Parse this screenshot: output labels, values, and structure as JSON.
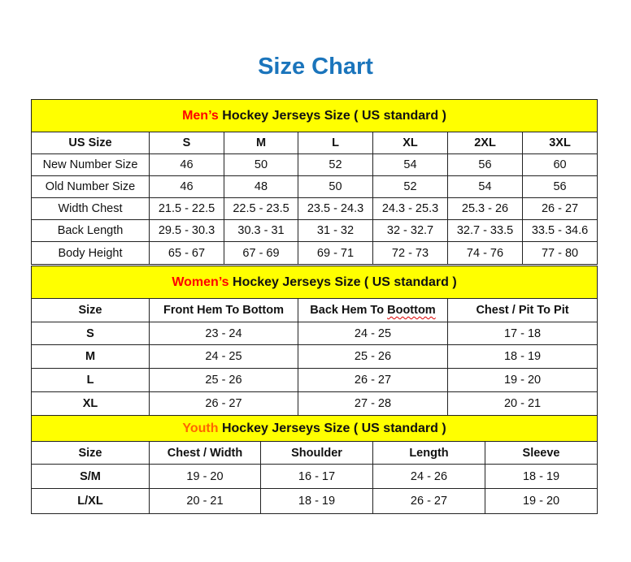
{
  "title": "Size Chart",
  "colors": {
    "title": "#1b75bc",
    "header_bg": "#ffff00",
    "mens_accent": "#ff0000",
    "womens_accent": "#ff0000",
    "youth_accent": "#ff6600"
  },
  "sections": [
    {
      "key": "mens",
      "accent": "Men’s",
      "accent_color": "#ff0000",
      "rest": " Hockey Jerseys Size ( US standard )",
      "headers": [
        "US Size",
        "S",
        "M",
        "L",
        "XL",
        "2XL",
        "3XL"
      ],
      "rows": [
        [
          "New Number Size",
          "46",
          "50",
          "52",
          "54",
          "56",
          "60"
        ],
        [
          "Old Number Size",
          "46",
          "48",
          "50",
          "52",
          "54",
          "56"
        ],
        [
          "Width Chest",
          "21.5 - 22.5",
          "22.5 - 23.5",
          "23.5 - 24.3",
          "24.3 - 25.3",
          "25.3 - 26",
          "26 - 27"
        ],
        [
          "Back Length",
          "29.5 - 30.3",
          "30.3 - 31",
          "31 - 32",
          "32 - 32.7",
          "32.7 - 33.5",
          "33.5 - 34.6"
        ],
        [
          "Body Height",
          "65 - 67",
          "67 - 69",
          "69 - 71",
          "72 - 73",
          "74 - 76",
          "77 - 80"
        ]
      ]
    },
    {
      "key": "womens",
      "accent": "Women’s",
      "accent_color": "#ff0000",
      "rest": " Hockey Jerseys Size ( US standard )",
      "headers": [
        "Size",
        "Front Hem To Bottom",
        "Back Hem To Boottom",
        "Chest / Pit To Pit"
      ],
      "rows": [
        [
          "S",
          "23 - 24",
          "24 - 25",
          "17 - 18"
        ],
        [
          "M",
          "24 - 25",
          "25 - 26",
          "18 - 19"
        ],
        [
          "L",
          "25 - 26",
          "26 - 27",
          "19 - 20"
        ],
        [
          "XL",
          "26 - 27",
          "27 - 28",
          "20 - 21"
        ]
      ]
    },
    {
      "key": "youth",
      "accent": "Youth",
      "accent_color": "#ff6600",
      "rest": " Hockey Jerseys Size ( US standard )",
      "headers": [
        "Size",
        "Chest / Width",
        "Shoulder",
        "Length",
        "Sleeve"
      ],
      "rows": [
        [
          "S/M",
          "19 - 20",
          "16 - 17",
          "24 - 26",
          "18 - 19"
        ],
        [
          "L/XL",
          "20 - 21",
          "18 - 19",
          "26 - 27",
          "19 - 20"
        ]
      ]
    }
  ]
}
